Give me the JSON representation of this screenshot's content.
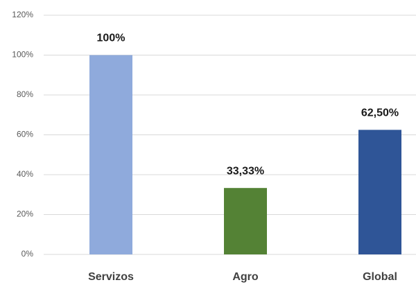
{
  "chart_data": {
    "type": "bar",
    "categories": [
      "Servizos",
      "Agro",
      "Global"
    ],
    "values": [
      100,
      33.33,
      62.5
    ],
    "value_labels": [
      "100%",
      "33,33%",
      "62,50%"
    ],
    "colors": [
      "#8faadc",
      "#548235",
      "#2f5597"
    ],
    "ylim": [
      0,
      120
    ],
    "yticks": [
      {
        "value": 0,
        "label": "0%"
      },
      {
        "value": 20,
        "label": "20%"
      },
      {
        "value": 40,
        "label": "40%"
      },
      {
        "value": 60,
        "label": "60%"
      },
      {
        "value": 80,
        "label": "80%"
      },
      {
        "value": 100,
        "label": "100%"
      },
      {
        "value": 120,
        "label": "120%"
      }
    ],
    "grid": true
  }
}
